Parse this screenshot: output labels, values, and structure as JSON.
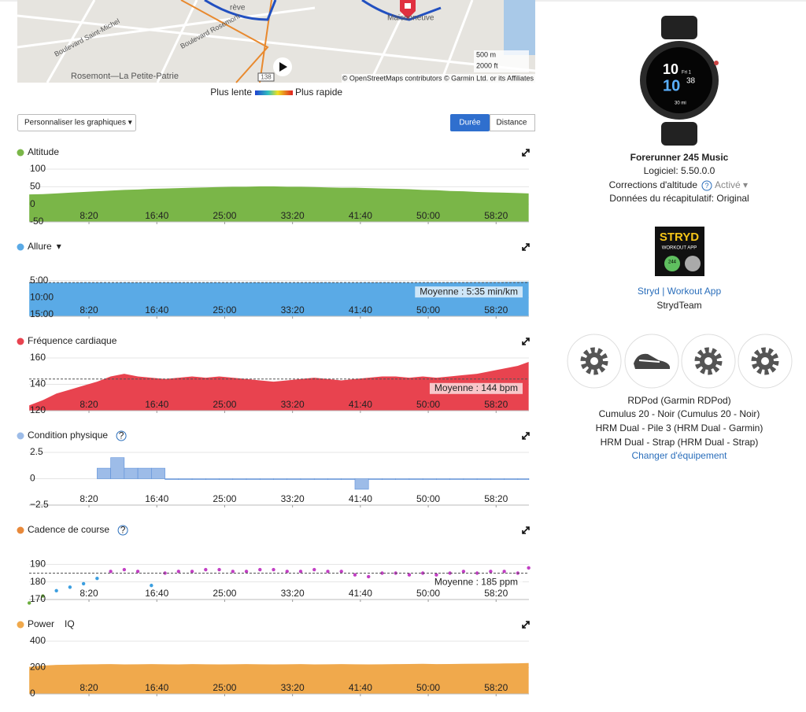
{
  "map": {
    "route_label": "rève",
    "place": "Maisonneuve",
    "district": "Rosemont—La Petite-Patrie",
    "street": "Boulevard Saint-Michel",
    "street2": "Boulevard Rosemont",
    "road_number": "138",
    "scale": [
      "500 m",
      "2000 ft"
    ],
    "attribution": "© OpenStreetMaps contributors © Garmin Ltd. or its Affiliates"
  },
  "speed_legend": {
    "slow": "Plus lente",
    "fast": "Plus rapide"
  },
  "controls": {
    "customize": "Personnaliser les graphiques ▾",
    "toggle": [
      "Durée",
      "Distance"
    ]
  },
  "x_axis": {
    "xlim": [
      59,
      3742
    ],
    "xticks": [
      {
        "value": 500,
        "label": "8:20"
      },
      {
        "value": 1000,
        "label": "16:40"
      },
      {
        "value": 1500,
        "label": "25:00"
      },
      {
        "value": 2000,
        "label": "33:20"
      },
      {
        "value": 2500,
        "label": "41:40"
      },
      {
        "value": 3000,
        "label": "50:00"
      },
      {
        "value": 3500,
        "label": "58:20"
      }
    ],
    "x": [
      60,
      160,
      260,
      360,
      460,
      560,
      660,
      760,
      860,
      960,
      1060,
      1160,
      1260,
      1360,
      1460,
      1560,
      1660,
      1760,
      1860,
      1960,
      2060,
      2160,
      2260,
      2360,
      2460,
      2560,
      2660,
      2760,
      2860,
      2960,
      3060,
      3160,
      3260,
      3360,
      3460,
      3560,
      3660,
      3740
    ]
  },
  "charts": [
    {
      "type": "area",
      "title": "Altitude",
      "color": "#7ab648",
      "ylim": [
        -50,
        100
      ],
      "yticks": [
        100,
        50,
        0,
        -50
      ],
      "values": [
        28,
        29,
        31,
        33,
        35,
        37,
        39,
        41,
        42,
        44,
        45,
        46,
        47,
        48,
        49,
        50,
        50,
        51,
        51,
        50,
        50,
        49,
        48,
        47,
        47,
        46,
        45,
        44,
        43,
        41,
        40,
        38,
        37,
        35,
        34,
        33,
        32,
        31
      ]
    },
    {
      "type": "area",
      "title": "Allure",
      "dropdown": "▾",
      "color": "#5aaae6",
      "inverted": true,
      "ylim": [
        0,
        930
      ],
      "yticks": [
        {
          "value": 300,
          "label": "5:00"
        },
        {
          "value": 600,
          "label": "10:00"
        },
        {
          "value": 900,
          "label": "15:00"
        }
      ],
      "values": [
        340,
        338,
        336,
        335,
        334,
        333,
        336,
        334,
        335,
        337,
        333,
        334,
        336,
        335,
        334,
        336,
        335,
        333,
        334,
        336,
        335,
        334,
        333,
        336,
        335,
        334,
        333,
        335,
        336,
        334,
        333,
        331,
        330,
        328,
        327,
        325,
        323,
        320
      ],
      "average": {
        "value": 335,
        "label": "Moyenne : 5:35 min/km"
      }
    },
    {
      "type": "area",
      "title": "Fréquence cardiaque",
      "color": "#e8434f",
      "ylim": [
        120,
        160
      ],
      "yticks": [
        160,
        140,
        120
      ],
      "values": [
        124,
        128,
        133,
        136,
        139,
        142,
        146,
        148,
        146,
        145,
        144,
        145,
        146,
        145,
        146,
        145,
        144,
        143,
        142,
        143,
        144,
        145,
        144,
        143,
        144,
        145,
        146,
        146,
        145,
        146,
        145,
        146,
        147,
        148,
        150,
        152,
        154,
        157
      ],
      "average": {
        "value": 144,
        "label": "Moyenne : 144 bpm"
      }
    },
    {
      "type": "step",
      "title": "Condition physique",
      "help": "?",
      "color": "#9dbce8",
      "ylim": [
        -2.5,
        2.5
      ],
      "yticks": [
        2.5,
        0,
        {
          "value": -2.5,
          "label": "−2.5"
        }
      ],
      "values": [
        null,
        null,
        null,
        null,
        null,
        1,
        2,
        1,
        1,
        1,
        0,
        0,
        0,
        0,
        0,
        0,
        0,
        0,
        0,
        0,
        0,
        0,
        0,
        0,
        -1,
        0,
        0,
        0,
        0,
        0,
        0,
        0,
        0,
        0,
        0,
        0,
        0,
        0
      ]
    },
    {
      "type": "scatter",
      "title": "Cadence de course",
      "help": "?",
      "color": "#e8893a",
      "zones": [
        {
          "min": 183,
          "color": "#c23fc4"
        },
        {
          "min": 174,
          "color": "#3c9fe0"
        },
        {
          "min": 0,
          "color": "#6cae3e"
        }
      ],
      "ylim": [
        170,
        200
      ],
      "yticks": [
        190,
        180,
        170
      ],
      "values": [
        168,
        172,
        175,
        177,
        179,
        182,
        186,
        187,
        186,
        178,
        185,
        186,
        186,
        187,
        187,
        186,
        186,
        187,
        187,
        186,
        186,
        187,
        186,
        186,
        184,
        183,
        185,
        185,
        184,
        185,
        184,
        185,
        186,
        185,
        186,
        186,
        185,
        188
      ],
      "average": {
        "value": 185,
        "label": "Moyenne : 185 ppm"
      }
    },
    {
      "type": "area",
      "title": "Power",
      "badge": "IQ",
      "color": "#f0a94c",
      "ylim": [
        0,
        400
      ],
      "yticks": [
        400,
        200,
        0
      ],
      "values": [
        205,
        215,
        220,
        222,
        224,
        225,
        226,
        224,
        225,
        226,
        225,
        224,
        226,
        225,
        224,
        225,
        226,
        225,
        224,
        225,
        226,
        224,
        225,
        226,
        225,
        224,
        225,
        226,
        227,
        228,
        226,
        227,
        228,
        229,
        230,
        231,
        232,
        234
      ]
    }
  ],
  "device": {
    "face": [
      "10",
      "Fri 1",
      "10",
      "38",
      "30 mi"
    ],
    "name": "Forerunner 245 Music",
    "software": "Logiciel: 5.50.0.0",
    "altitude_label": "Corrections d'altitude",
    "help": "?",
    "altitude_value": "Activé ▾",
    "summary": "Données du récapitulatif: Original"
  },
  "app": {
    "icon_title": "STRYD",
    "icon_sub": "WORKOUT APP",
    "icon_value": "244",
    "name": "Stryd | Workout App",
    "author": "StrydTeam"
  },
  "gear": {
    "items": [
      "RDPod (Garmin RDPod)",
      "Cumulus 20 - Noir (Cumulus 20 - Noir)",
      "HRM Dual - Pile 3 (HRM Dual - Garmin)",
      "HRM Dual - Strap (HRM Dual - Strap)"
    ],
    "change": "Changer d'équipement"
  }
}
